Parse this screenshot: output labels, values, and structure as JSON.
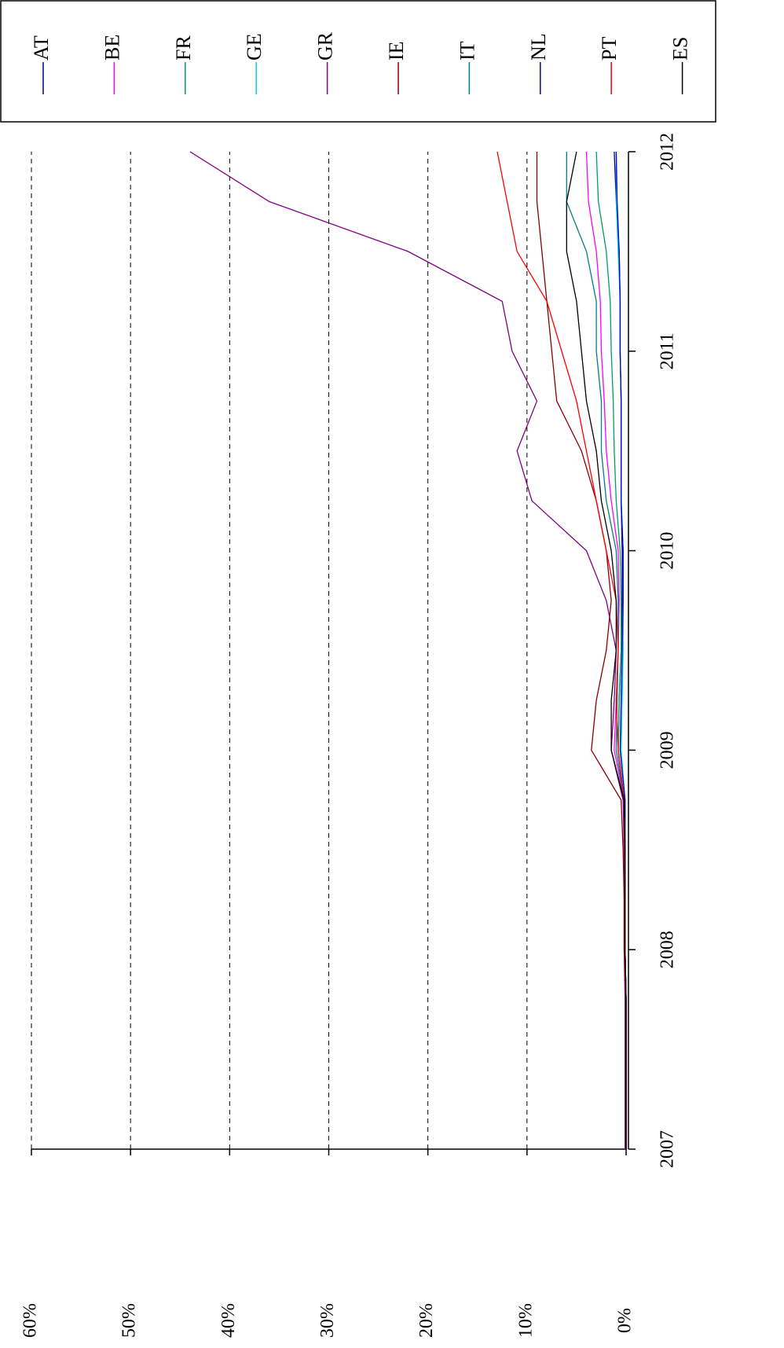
{
  "chart_data": {
    "type": "line",
    "x": [
      2007,
      2007.25,
      2007.5,
      2007.75,
      2008,
      2008.25,
      2008.5,
      2008.75,
      2009,
      2009.25,
      2009.5,
      2009.75,
      2010,
      2010.25,
      2010.5,
      2010.75,
      2011,
      2011.25,
      2011.5,
      2011.75,
      2012
    ],
    "xlim": [
      2007,
      2012
    ],
    "xticks": [
      2007,
      2008,
      2009,
      2010,
      2011,
      2012
    ],
    "ylim": [
      0,
      60
    ],
    "yticks": [
      {
        "value": 0,
        "label": "0%"
      },
      {
        "value": 10,
        "label": "10%"
      },
      {
        "value": 20,
        "label": "20%"
      },
      {
        "value": 30,
        "label": "30%"
      },
      {
        "value": 40,
        "label": "40%"
      },
      {
        "value": 50,
        "label": "50%"
      },
      {
        "value": 60,
        "label": "60%"
      }
    ],
    "grid": true,
    "series": [
      {
        "name": "AT",
        "color": "#000080",
        "values": [
          0,
          0,
          0,
          0,
          0.1,
          0.1,
          0.1,
          0.2,
          0.8,
          0.7,
          0.5,
          0.4,
          0.4,
          0.5,
          0.5,
          0.5,
          0.6,
          0.6,
          0.7,
          1.0,
          1.2
        ]
      },
      {
        "name": "BE",
        "color": "#ff00ff",
        "values": [
          0,
          0,
          0,
          0,
          0.1,
          0.1,
          0.1,
          0.2,
          1.2,
          1.0,
          0.8,
          0.7,
          0.8,
          1.5,
          2.0,
          2.2,
          2.5,
          2.6,
          3.0,
          3.8,
          4.0
        ]
      },
      {
        "name": "FR",
        "color": "#00a060",
        "values": [
          0,
          0,
          0,
          0,
          0.1,
          0.1,
          0.1,
          0.2,
          0.8,
          0.7,
          0.5,
          0.5,
          0.6,
          1.0,
          1.2,
          1.3,
          1.5,
          1.6,
          2.0,
          2.8,
          3.0
        ]
      },
      {
        "name": "GE",
        "color": "#00d0d0",
        "values": [
          0,
          0,
          0,
          0,
          0.1,
          0.1,
          0.1,
          0.1,
          0.5,
          0.4,
          0.3,
          0.3,
          0.3,
          0.5,
          0.5,
          0.5,
          0.6,
          0.6,
          0.8,
          1.0,
          1.0
        ]
      },
      {
        "name": "GR",
        "color": "#800080",
        "values": [
          0.1,
          0.1,
          0.1,
          0.1,
          0.2,
          0.2,
          0.2,
          0.3,
          1.5,
          1.2,
          1.0,
          2.0,
          4.0,
          9.5,
          11.0,
          9.0,
          11.5,
          12.5,
          22.0,
          36.0,
          44.0
        ]
      },
      {
        "name": "IE",
        "color": "#8b0000",
        "values": [
          0,
          0,
          0,
          0,
          0.2,
          0.2,
          0.3,
          0.5,
          3.5,
          3.0,
          2.0,
          1.5,
          2.0,
          3.0,
          4.5,
          7.0,
          7.5,
          8.0,
          8.5,
          9.0,
          9.0
        ]
      },
      {
        "name": "IT",
        "color": "#008080",
        "values": [
          0,
          0,
          0,
          0,
          0.1,
          0.1,
          0.1,
          0.2,
          1.0,
          0.9,
          0.8,
          0.8,
          1.0,
          2.0,
          2.5,
          2.5,
          3.0,
          3.0,
          4.0,
          6.0,
          6.0
        ]
      },
      {
        "name": "NL",
        "color": "#0000cd",
        "values": [
          0,
          0,
          0,
          0,
          0.1,
          0.1,
          0.1,
          0.1,
          0.6,
          0.5,
          0.4,
          0.3,
          0.3,
          0.5,
          0.5,
          0.5,
          0.6,
          0.6,
          0.7,
          0.9,
          1.0
        ]
      },
      {
        "name": "PT",
        "color": "#ff0000",
        "values": [
          0,
          0,
          0,
          0,
          0.1,
          0.1,
          0.1,
          0.2,
          0.8,
          1.0,
          0.8,
          1.0,
          2.0,
          3.0,
          4.0,
          5.0,
          6.5,
          8.0,
          11.0,
          12.0,
          13.0
        ]
      },
      {
        "name": "ES",
        "color": "#000000",
        "values": [
          0,
          0,
          0,
          0,
          0.1,
          0.1,
          0.1,
          0.2,
          1.5,
          1.5,
          1.0,
          1.0,
          1.5,
          2.5,
          3.0,
          4.0,
          4.5,
          5.0,
          6.0,
          6.0,
          5.0
        ]
      }
    ]
  }
}
